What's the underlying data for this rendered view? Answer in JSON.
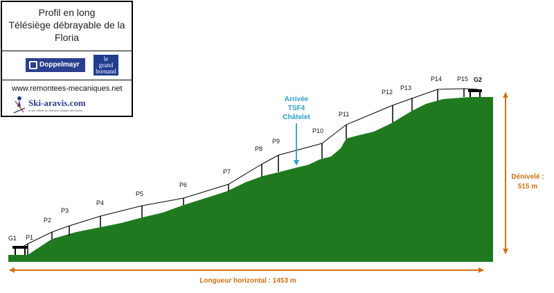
{
  "info_box": {
    "title_lines": [
      "Profil en long",
      "Télésiège débrayable de la",
      "Floria"
    ],
    "logos": {
      "doppelmayr": "Doppelmayr",
      "grand_bornand": [
        "le",
        "grand",
        "bornand"
      ]
    },
    "website": "www.remontees-mecaniques.net",
    "ski_logo": {
      "text": "Ski-aravis.com",
      "subtitle": "le site officiel du domaine skiable des Aravis"
    }
  },
  "stations": [
    {
      "id": "G1",
      "label": "G1"
    },
    {
      "id": "G2",
      "label": "G2"
    }
  ],
  "pylons": [
    "P1",
    "P2",
    "P3",
    "P4",
    "P5",
    "P6",
    "P7",
    "P8",
    "P9",
    "P10",
    "P11",
    "P12",
    "P13",
    "P14",
    "P15"
  ],
  "annotation": {
    "lines": [
      "Arrivée",
      "TSF4",
      "Châtelet"
    ]
  },
  "dimensions": {
    "vertical_lines": [
      "Dénivelé :",
      "515 m"
    ],
    "horizontal": "Longueur horizontal : 1453 m"
  },
  "colors": {
    "terrain": "#1f7a1f",
    "dimension": "#d07010",
    "annotation": "#2aa0c8",
    "cable": "#000000"
  }
}
